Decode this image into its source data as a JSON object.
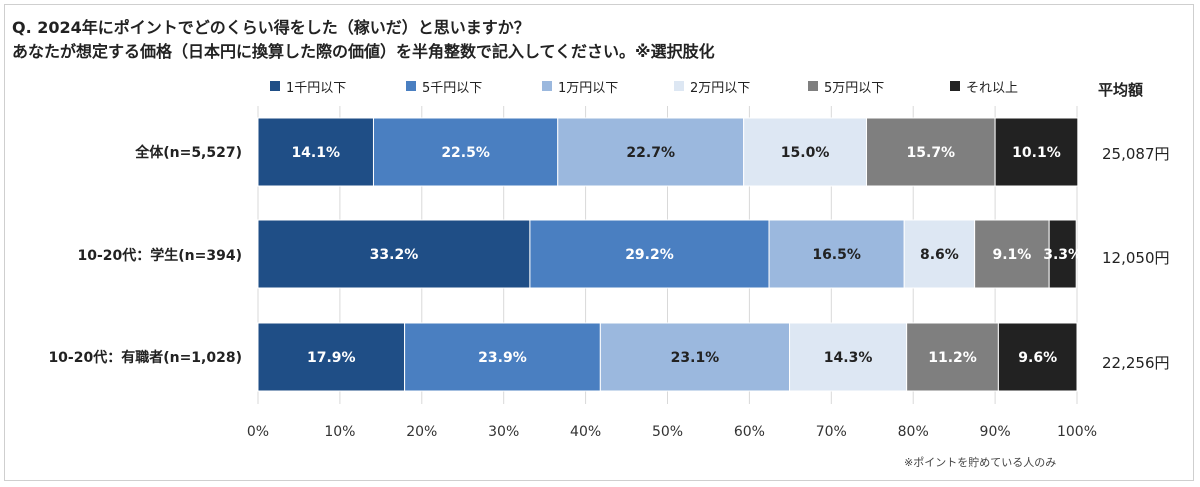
{
  "question": {
    "line1": "Q. 2024年にポイントでどのくらい得をした（稼いだ）と思いますか？",
    "line2": "あなたが想定する価格（日本円に換算した際の価値）を半角整数で記入してください。※選択肢化"
  },
  "avg_header": "平均額",
  "footnote": "※ポイントを貯めている人のみ",
  "colors": {
    "1千円以下": "#1f4e86",
    "5千円以下": "#4a7fc1",
    "1万円以下": "#9bb8de",
    "2万円以下": "#dde7f3",
    "5万円以下": "#7f7f7f",
    "それ以上": "#222222"
  },
  "chart_data": {
    "type": "bar",
    "orientation": "horizontal",
    "stacked": true,
    "percent_scale": true,
    "xlim": [
      0,
      100
    ],
    "x_ticks": [
      "0%",
      "10%",
      "20%",
      "30%",
      "40%",
      "50%",
      "60%",
      "70%",
      "80%",
      "90%",
      "100%"
    ],
    "legend_position": "top",
    "grid": true,
    "categories": [
      "全体(n=5,527)",
      "10-20代：学生(n=394)",
      "10-20代：有職者(n=1,028)"
    ],
    "series": [
      {
        "name": "1千円以下",
        "values": [
          14.1,
          33.2,
          17.9
        ],
        "labels": [
          "14.1%",
          "33.2%",
          "17.9%"
        ]
      },
      {
        "name": "5千円以下",
        "values": [
          22.5,
          29.2,
          23.9
        ],
        "labels": [
          "22.5%",
          "29.2%",
          "23.9%"
        ]
      },
      {
        "name": "1万円以下",
        "values": [
          22.7,
          16.5,
          23.1
        ],
        "labels": [
          "22.7%",
          "16.5%",
          "23.1%"
        ]
      },
      {
        "name": "2万円以下",
        "values": [
          15.0,
          8.6,
          14.3
        ],
        "labels": [
          "15.0%",
          "8.6%",
          "14.3%"
        ]
      },
      {
        "name": "5万円以下",
        "values": [
          15.7,
          9.1,
          11.2
        ],
        "labels": [
          "15.7%",
          "9.1%",
          "11.2%"
        ]
      },
      {
        "name": "それ以上",
        "values": [
          10.1,
          3.3,
          9.6
        ],
        "labels": [
          "10.1%",
          "3.3%",
          "9.6%"
        ]
      }
    ],
    "averages": [
      "25,087円",
      "12,050円",
      "22,256円"
    ]
  }
}
